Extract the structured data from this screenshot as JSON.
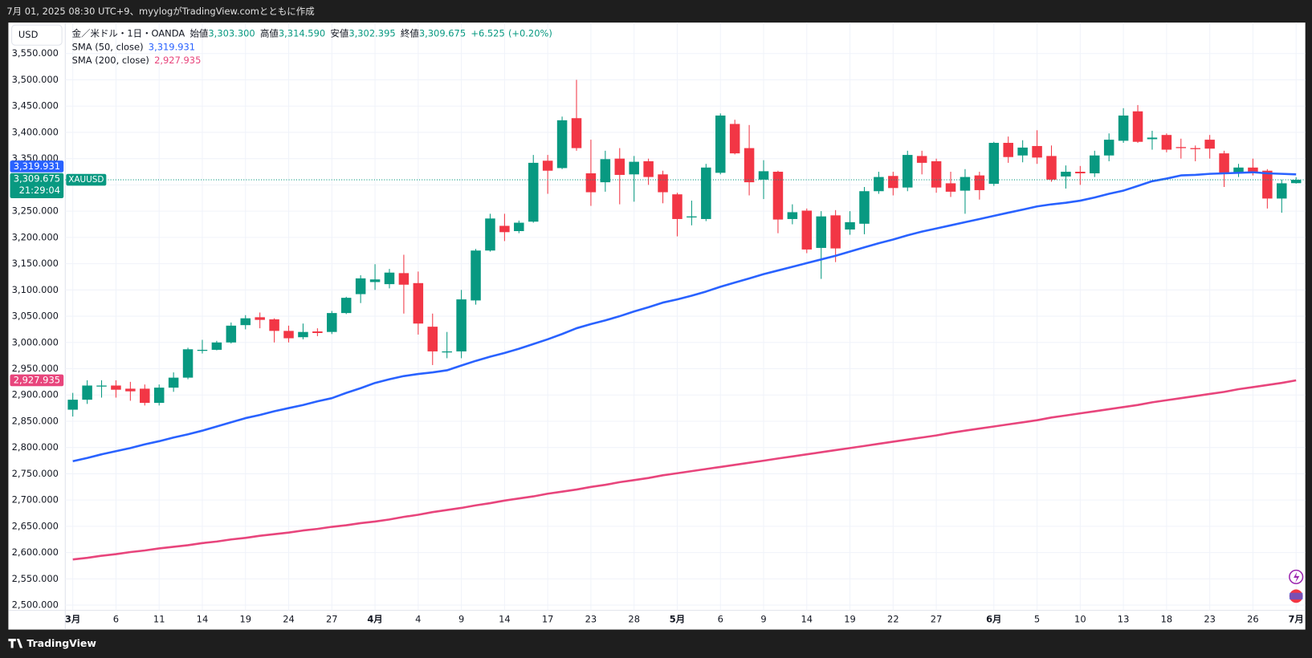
{
  "header": "7月 01, 2025 08:30 UTC+9、myylogがTradingView.comとともに作成",
  "footer": "TradingView",
  "chart_data": {
    "type": "candlestick",
    "title": "金／米ドル・1日・OANDA",
    "currency": "USD",
    "symbol": "XAUUSD",
    "countdown": "21:29:04",
    "legend": [
      {
        "name": "始値",
        "value": 3303.3,
        "label": "3,303.300"
      },
      {
        "name": "高値",
        "value": 3314.59,
        "label": "3,314.590"
      },
      {
        "name": "安値",
        "value": 3302.395,
        "label": "3,302.395"
      },
      {
        "name": "終値",
        "value": 3309.675,
        "label": "3,309.675"
      }
    ],
    "change": {
      "value": 6.525,
      "label": "+6.525"
    },
    "change_pct": {
      "value": 0.2,
      "label": "(+0.20%)"
    },
    "up_color": "#089981",
    "down_color": "#f23645",
    "grid": true,
    "categories": [
      "3月",
      null,
      null,
      "6",
      null,
      null,
      "11",
      null,
      null,
      "14",
      null,
      null,
      "19",
      null,
      null,
      "24",
      null,
      null,
      "27",
      null,
      null,
      "4月",
      null,
      null,
      "4",
      null,
      null,
      "9",
      null,
      null,
      "14",
      null,
      null,
      "17",
      null,
      null,
      "23",
      null,
      null,
      "28",
      null,
      null,
      "5月",
      null,
      null,
      "6",
      null,
      null,
      "9",
      null,
      null,
      "14",
      null,
      null,
      "19",
      null,
      null,
      "22",
      null,
      null,
      "27",
      null,
      null,
      null,
      "6月",
      null,
      null,
      "5",
      null,
      null,
      "10",
      null,
      null,
      "13",
      null,
      null,
      "18",
      null,
      null,
      "23",
      null,
      null,
      "26",
      null,
      null,
      "7月"
    ],
    "open": [
      2872,
      2891,
      2916,
      2918,
      2912,
      2912,
      2885,
      2914,
      2933,
      2984,
      2986,
      3000,
      3033,
      3048,
      3044,
      3022,
      3010,
      3021,
      3020,
      3056,
      3092,
      3115,
      3111,
      3132,
      3113,
      3030,
      2981,
      2983,
      3080,
      3175,
      3222,
      3212,
      3230,
      3346,
      3332,
      3427,
      3322,
      3305,
      3350,
      3320,
      3345,
      3320,
      3282,
      3238,
      3235,
      3323,
      3416,
      3370,
      3310,
      3325,
      3235,
      3251,
      3180,
      3242,
      3215,
      3226,
      3288,
      3317,
      3295,
      3355,
      3345,
      3303,
      3289,
      3318,
      3302,
      3380,
      3356,
      3374,
      3355,
      3316,
      3325,
      3322,
      3356,
      3384,
      3440,
      3387,
      3395,
      3372,
      3370,
      3386,
      3360,
      3323,
      3333,
      3327,
      3274,
      3303.3
    ],
    "high": [
      2904,
      2928,
      2928,
      2928,
      2925,
      2920,
      2920,
      2943,
      2990,
      3005,
      3003,
      3038,
      3052,
      3057,
      3046,
      3032,
      3036,
      3027,
      3060,
      3087,
      3128,
      3149,
      3140,
      3167,
      3135,
      3055,
      3020,
      3100,
      3178,
      3245,
      3245,
      3232,
      3357,
      3357,
      3430,
      3500,
      3386,
      3365,
      3370,
      3355,
      3350,
      3327,
      3285,
      3270,
      3340,
      3436,
      3424,
      3414,
      3347,
      3327,
      3263,
      3255,
      3250,
      3252,
      3250,
      3296,
      3325,
      3325,
      3365,
      3365,
      3350,
      3325,
      3330,
      3325,
      3382,
      3392,
      3385,
      3404,
      3375,
      3337,
      3336,
      3365,
      3398,
      3446,
      3452,
      3403,
      3398,
      3388,
      3375,
      3395,
      3365,
      3340,
      3350,
      3330,
      3310,
      3314.59
    ],
    "low": [
      2859,
      2883,
      2895,
      2895,
      2889,
      2880,
      2880,
      2906,
      2930,
      2979,
      2985,
      2998,
      3025,
      3027,
      3000,
      3000,
      3006,
      3012,
      3016,
      3054,
      3075,
      3100,
      3103,
      3055,
      3015,
      2957,
      2970,
      2970,
      3072,
      3173,
      3193,
      3208,
      3228,
      3283,
      3330,
      3365,
      3260,
      3287,
      3263,
      3268,
      3300,
      3265,
      3202,
      3223,
      3231,
      3320,
      3358,
      3280,
      3273,
      3208,
      3225,
      3170,
      3121,
      3153,
      3205,
      3206,
      3283,
      3280,
      3288,
      3320,
      3285,
      3277,
      3245,
      3272,
      3298,
      3342,
      3343,
      3340,
      3306,
      3293,
      3300,
      3315,
      3345,
      3380,
      3380,
      3367,
      3362,
      3350,
      3345,
      3350,
      3296,
      3315,
      3318,
      3255,
      3247,
      3302.395
    ],
    "close": [
      2891,
      2918,
      2918,
      2910,
      2907,
      2885,
      2914,
      2933,
      2987,
      2986,
      3000,
      3032,
      3046,
      3043,
      3022,
      3008,
      3020,
      3018,
      3056,
      3085,
      3122,
      3120,
      3133,
      3110,
      3036,
      2983,
      2983,
      3082,
      3175,
      3236,
      3210,
      3228,
      3342,
      3327,
      3423,
      3370,
      3286,
      3349,
      3319,
      3344,
      3315,
      3286,
      3235,
      3240,
      3333,
      3432,
      3360,
      3305,
      3326,
      3234,
      3248,
      3177,
      3240,
      3179,
      3229,
      3288,
      3315,
      3294,
      3357,
      3342,
      3295,
      3287,
      3315,
      3290,
      3380,
      3353,
      3371,
      3352,
      3310,
      3325,
      3322,
      3356,
      3386,
      3432,
      3382,
      3390,
      3367,
      3370,
      3368,
      3369,
      3322,
      3333,
      3322,
      3274,
      3303,
      3309.675
    ],
    "overlays": [
      {
        "name": "SMA (50, close)",
        "color": "#2962ff",
        "last": {
          "value": 3319.931,
          "label": "3,319.931"
        },
        "values": [
          2774,
          2780,
          2787,
          2793,
          2799,
          2806,
          2812,
          2819,
          2825,
          2832,
          2840,
          2848,
          2856,
          2862,
          2869,
          2875,
          2881,
          2888,
          2894,
          2904,
          2913,
          2923,
          2930,
          2936,
          2940,
          2943,
          2947,
          2956,
          2965,
          2973,
          2980,
          2988,
          2997,
          3006,
          3016,
          3027,
          3035,
          3042,
          3050,
          3059,
          3067,
          3076,
          3082,
          3089,
          3097,
          3106,
          3114,
          3122,
          3130,
          3137,
          3144,
          3151,
          3158,
          3165,
          3173,
          3181,
          3189,
          3196,
          3204,
          3211,
          3217,
          3223,
          3229,
          3235,
          3241,
          3247,
          3253,
          3259,
          3263,
          3266,
          3270,
          3276,
          3283,
          3289,
          3298,
          3307,
          3312,
          3318,
          3319,
          3321,
          3322,
          3323,
          3324,
          3322,
          3321,
          3319.931
        ]
      },
      {
        "name": "SMA (200, close)",
        "color": "#e8457c",
        "last": {
          "value": 2927.935,
          "label": "2,927.935"
        },
        "values": [
          2587,
          2590,
          2594,
          2597,
          2601,
          2604,
          2608,
          2611,
          2614,
          2618,
          2621,
          2625,
          2628,
          2632,
          2635,
          2638,
          2642,
          2645,
          2649,
          2652,
          2656,
          2659,
          2663,
          2668,
          2672,
          2677,
          2681,
          2685,
          2690,
          2694,
          2699,
          2703,
          2707,
          2712,
          2716,
          2720,
          2725,
          2729,
          2734,
          2738,
          2742,
          2747,
          2751,
          2755,
          2759,
          2763,
          2767,
          2771,
          2775,
          2779,
          2783,
          2787,
          2791,
          2795,
          2799,
          2803,
          2807,
          2811,
          2815,
          2819,
          2823,
          2828,
          2832,
          2836,
          2840,
          2844,
          2848,
          2852,
          2857,
          2861,
          2865,
          2869,
          2873,
          2877,
          2881,
          2886,
          2890,
          2894,
          2898,
          2902,
          2906,
          2911,
          2915,
          2919,
          2923,
          2927.935
        ]
      }
    ],
    "ylim": [
      2490,
      3609
    ],
    "yticks": [
      {
        "value": 2500,
        "label": "2,500.000"
      },
      {
        "value": 2550,
        "label": "2,550.000"
      },
      {
        "value": 2600,
        "label": "2,600.000"
      },
      {
        "value": 2650,
        "label": "2,650.000"
      },
      {
        "value": 2700,
        "label": "2,700.000"
      },
      {
        "value": 2750,
        "label": "2,750.000"
      },
      {
        "value": 2800,
        "label": "2,800.000"
      },
      {
        "value": 2850,
        "label": "2,850.000"
      },
      {
        "value": 2900,
        "label": "2,900.000"
      },
      {
        "value": 2950,
        "label": "2,950.000"
      },
      {
        "value": 3000,
        "label": "3,000.000"
      },
      {
        "value": 3050,
        "label": "3,050.000"
      },
      {
        "value": 3100,
        "label": "3,100.000"
      },
      {
        "value": 3150,
        "label": "3,150.000"
      },
      {
        "value": 3200,
        "label": "3,200.000"
      },
      {
        "value": 3250,
        "label": "3,250.000"
      },
      {
        "value": 3300,
        "label": "3,300.000"
      },
      {
        "value": 3350,
        "label": "3,350.000"
      },
      {
        "value": 3400,
        "label": "3,400.000"
      },
      {
        "value": 3450,
        "label": "3,450.000"
      },
      {
        "value": 3500,
        "label": "3,500.000"
      },
      {
        "value": 3550,
        "label": "3,550.000"
      }
    ]
  }
}
